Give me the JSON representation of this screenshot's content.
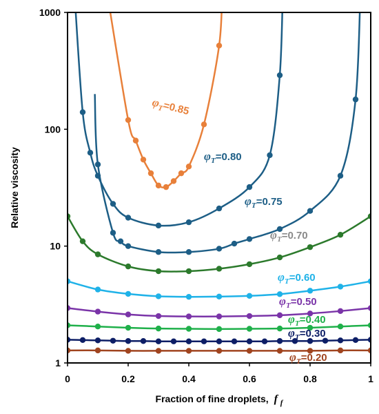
{
  "chart_data": {
    "type": "line",
    "xlabel": "Fraction of fine droplets,",
    "xlabel_symbol": "f",
    "xlabel_subscript": "f",
    "ylabel": "Relative viscosity",
    "xlim": [
      0,
      1
    ],
    "ylim": [
      1,
      1000
    ],
    "yscale": "log",
    "grid": false,
    "legend": "inline labels",
    "x_ticks": [
      "0",
      "0.2",
      "0.4",
      "0.6",
      "0.8",
      "1"
    ],
    "y_ticks": [
      "1",
      "10",
      "100",
      "1000"
    ],
    "series": [
      {
        "name": "φT=0.20",
        "symbol": "φ",
        "subscript": "T",
        "value_text": "=0.20",
        "color": "#a0441f",
        "x": [
          0,
          0.1,
          0.2,
          0.3,
          0.4,
          0.5,
          0.6,
          0.7,
          0.8,
          0.9,
          1.0
        ],
        "y": [
          1.28,
          1.28,
          1.27,
          1.27,
          1.27,
          1.27,
          1.27,
          1.27,
          1.27,
          1.28,
          1.28
        ]
      },
      {
        "name": "φT=0.30",
        "symbol": "φ",
        "subscript": "T",
        "value_text": "=0.30",
        "color": "#0d1e66",
        "x": [
          0,
          0.05,
          0.1,
          0.15,
          0.2,
          0.25,
          0.3,
          0.35,
          0.4,
          0.45,
          0.5,
          0.55,
          0.6,
          0.65,
          0.7,
          0.75,
          0.8,
          0.85,
          0.9,
          0.95,
          1.0
        ],
        "y": [
          1.58,
          1.57,
          1.56,
          1.55,
          1.54,
          1.54,
          1.53,
          1.53,
          1.53,
          1.53,
          1.53,
          1.53,
          1.53,
          1.53,
          1.54,
          1.54,
          1.54,
          1.55,
          1.56,
          1.57,
          1.58
        ]
      },
      {
        "name": "φT=0.40",
        "symbol": "φ",
        "subscript": "T",
        "value_text": "=0.40",
        "color": "#1fb04a",
        "x": [
          0,
          0.1,
          0.2,
          0.3,
          0.4,
          0.5,
          0.6,
          0.7,
          0.8,
          0.9,
          1.0
        ],
        "y": [
          2.1,
          2.05,
          2.0,
          1.97,
          1.96,
          1.95,
          1.96,
          1.97,
          2.0,
          2.05,
          2.1
        ]
      },
      {
        "name": "φT=0.50",
        "symbol": "φ",
        "subscript": "T",
        "value_text": "=0.50",
        "color": "#7a34a8",
        "x": [
          0,
          0.1,
          0.2,
          0.3,
          0.4,
          0.5,
          0.6,
          0.7,
          0.8,
          0.9,
          1.0
        ],
        "y": [
          2.95,
          2.75,
          2.6,
          2.52,
          2.5,
          2.5,
          2.52,
          2.56,
          2.65,
          2.78,
          2.95
        ]
      },
      {
        "name": "φT=0.60",
        "symbol": "φ",
        "subscript": "T",
        "value_text": "=0.60",
        "color": "#1fb2e8",
        "x": [
          0,
          0.1,
          0.2,
          0.3,
          0.4,
          0.5,
          0.6,
          0.7,
          0.8,
          0.9,
          1.0
        ],
        "y": [
          5.0,
          4.25,
          3.9,
          3.72,
          3.68,
          3.7,
          3.75,
          3.88,
          4.15,
          4.5,
          5.0
        ]
      },
      {
        "name": "φT=0.70",
        "symbol": "φ",
        "subscript": "T",
        "value_text": "=0.70",
        "color": "#2c7a2c",
        "label_color": "#8a8a8a",
        "x": [
          0,
          0.05,
          0.1,
          0.2,
          0.3,
          0.4,
          0.5,
          0.6,
          0.7,
          0.8,
          0.9,
          1.0
        ],
        "y": [
          18,
          11,
          8.5,
          6.7,
          6.1,
          6.1,
          6.4,
          7.0,
          8.0,
          9.8,
          12.5,
          18
        ]
      },
      {
        "name": "φT=0.75",
        "symbol": "φ",
        "subscript": "T",
        "value_text": "=0.75",
        "color": "#1d5e86",
        "x": [
          0.1,
          0.15,
          0.175,
          0.2,
          0.3,
          0.4,
          0.5,
          0.55,
          0.6,
          0.7,
          0.8,
          0.9,
          0.95
        ],
        "y": [
          50,
          13,
          11,
          10,
          8.9,
          8.9,
          9.5,
          10.5,
          11.5,
          14,
          20,
          40,
          180
        ]
      },
      {
        "name": "φT=0.80",
        "symbol": "φ",
        "subscript": "T",
        "value_text": "=0.80",
        "color": "#1d5e86",
        "x": [
          0.05,
          0.075,
          0.1,
          0.15,
          0.2,
          0.3,
          0.4,
          0.5,
          0.6,
          0.667,
          0.7
        ],
        "y": [
          140,
          63,
          40,
          23,
          17.5,
          15,
          16,
          21,
          32,
          60,
          290
        ]
      },
      {
        "name": "φT=0.85",
        "symbol": "φ",
        "subscript": "T",
        "value_text": "=0.85",
        "color": "#e8803a",
        "x": [
          0.2,
          0.225,
          0.25,
          0.275,
          0.3,
          0.325,
          0.35,
          0.375,
          0.4,
          0.45,
          0.5
        ],
        "y": [
          120,
          80,
          55,
          42,
          33,
          32,
          36,
          42,
          48,
          110,
          520
        ]
      }
    ]
  }
}
